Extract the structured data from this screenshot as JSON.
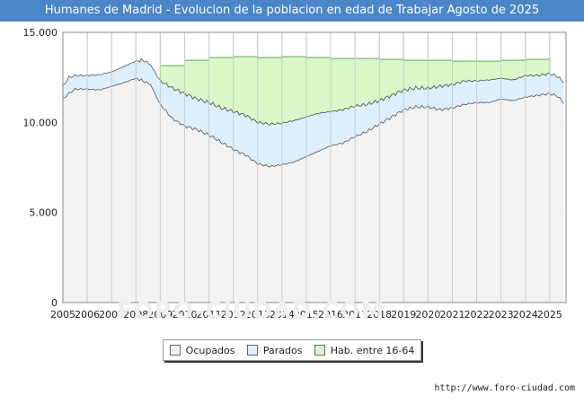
{
  "header": {
    "title": "Humanes de Madrid - Evolucion de la poblacion en edad de Trabajar Agosto de 2025"
  },
  "footer": {
    "url": "http://www.foro-ciudad.com"
  },
  "watermark": {
    "text": "FORO-CIUDAD.COM"
  },
  "colors": {
    "title_bg": "#4a86c8",
    "ocupados_fill": "#f2f2f2",
    "parados_fill": "#ddeefc",
    "hab_fill": "#d9f7c8",
    "line": "#555555",
    "hab_line": "#66aa55",
    "grid": "#bbbbbb"
  },
  "chart_data": {
    "type": "area",
    "title": "Humanes de Madrid - Evolucion de la poblacion en edad de Trabajar Agosto de 2025",
    "ylim": [
      0,
      15000
    ],
    "xlim": [
      2005,
      2025.67
    ],
    "y_ticks": [
      "0",
      "5.000",
      "10.000",
      "15.000"
    ],
    "y_tick_values": [
      0,
      5000,
      10000,
      15000
    ],
    "x_ticks": [
      "2005",
      "2006",
      "2007",
      "2008",
      "2009",
      "2010",
      "2011",
      "2012",
      "2013",
      "2014",
      "2015",
      "2016",
      "2017",
      "2018",
      "2019",
      "2020",
      "2021",
      "2022",
      "2023",
      "2024",
      "2025"
    ],
    "grid": true,
    "legend_position": "bottom",
    "series": [
      {
        "name": "Ocupados",
        "x": [
          2005,
          2005.25,
          2005.5,
          2006,
          2006.5,
          2007,
          2007.5,
          2008,
          2008.3,
          2008.6,
          2009,
          2009.5,
          2010,
          2010.5,
          2011,
          2011.5,
          2012,
          2012.5,
          2013,
          2013.5,
          2014,
          2014.5,
          2015,
          2015.5,
          2016,
          2016.5,
          2017,
          2017.5,
          2018,
          2018.5,
          2019,
          2019.5,
          2020,
          2020.5,
          2021,
          2021.5,
          2022,
          2022.5,
          2023,
          2023.5,
          2024,
          2024.5,
          2025,
          2025.33,
          2025.58
        ],
        "values": [
          11300,
          11600,
          11850,
          11850,
          11800,
          12000,
          12200,
          12450,
          12300,
          12100,
          11000,
          10200,
          9800,
          9600,
          9300,
          8900,
          8500,
          8200,
          7700,
          7550,
          7650,
          7800,
          8100,
          8400,
          8700,
          8850,
          9200,
          9500,
          9900,
          10300,
          10700,
          10850,
          10850,
          10700,
          10800,
          11000,
          11100,
          11100,
          11300,
          11200,
          11400,
          11500,
          11600,
          11450,
          11050
        ]
      },
      {
        "name": "Parados",
        "x": [
          2005,
          2005.25,
          2005.5,
          2006,
          2006.5,
          2007,
          2007.5,
          2008,
          2008.3,
          2008.6,
          2009,
          2009.5,
          2010,
          2010.5,
          2011,
          2011.5,
          2012,
          2012.5,
          2013,
          2013.5,
          2014,
          2014.5,
          2015,
          2015.5,
          2016,
          2016.5,
          2017,
          2017.5,
          2018,
          2018.5,
          2019,
          2019.5,
          2020,
          2020.5,
          2021,
          2021.5,
          2022,
          2022.5,
          2023,
          2023.5,
          2024,
          2024.5,
          2025,
          2025.33,
          2025.58
        ],
        "values": [
          12000,
          12500,
          12600,
          12600,
          12650,
          12800,
          13100,
          13400,
          13450,
          13200,
          12300,
          11900,
          11600,
          11300,
          11100,
          10800,
          10600,
          10400,
          10000,
          9900,
          9950,
          10100,
          10300,
          10500,
          10600,
          10700,
          10900,
          11000,
          11200,
          11500,
          11800,
          11900,
          11900,
          12000,
          12100,
          12300,
          12300,
          12350,
          12450,
          12350,
          12600,
          12600,
          12700,
          12550,
          12200
        ]
      },
      {
        "name": "Hab. entre 16-64",
        "x": [
          2009,
          2010,
          2011,
          2012,
          2013,
          2014,
          2015,
          2016,
          2017,
          2018,
          2019,
          2020,
          2021,
          2022,
          2023,
          2024
        ],
        "values": [
          13150,
          13450,
          13600,
          13650,
          13600,
          13650,
          13600,
          13550,
          13550,
          13500,
          13450,
          13450,
          13400,
          13400,
          13450,
          13500
        ]
      }
    ]
  }
}
